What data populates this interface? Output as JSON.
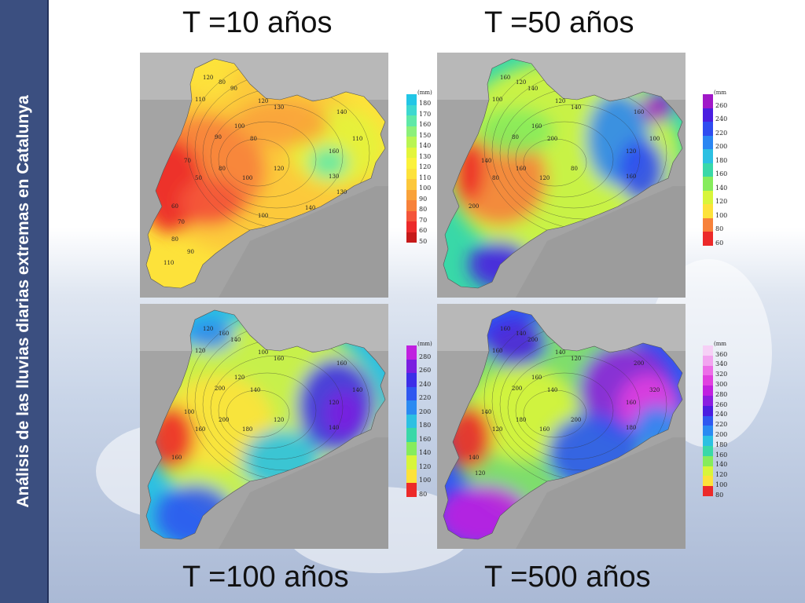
{
  "sidebar_title": "Análisis de las lluvias diarias extremas en Catalunya",
  "panels": [
    {
      "title": "T =10 años",
      "legend_unit": "(mm)",
      "legend_ticks": [
        "180",
        "170",
        "160",
        "150",
        "140",
        "130",
        "120",
        "110",
        "100",
        "90",
        "80",
        "70",
        "60",
        "50"
      ],
      "legend_colors": [
        "#22c6e6",
        "#3dd8d0",
        "#5fe8a8",
        "#8cf07a",
        "#b9f552",
        "#e3f53a",
        "#fbf23a",
        "#fde23a",
        "#fcc73a",
        "#f9a23a",
        "#f7813a",
        "#f4553a",
        "#ec2a2a",
        "#c61a1a"
      ],
      "contour_labels": [
        "120",
        "80",
        "90",
        "110",
        "120",
        "130",
        "100",
        "90",
        "80",
        "140",
        "110",
        "160",
        "70",
        "50",
        "80",
        "100",
        "120",
        "130",
        "60",
        "70",
        "80",
        "90",
        "100",
        "140",
        "130",
        "110"
      ]
    },
    {
      "title": "T =50 años",
      "legend_unit": "(mm",
      "legend_ticks": [
        "260",
        "240",
        "220",
        "200",
        "180",
        "160",
        "140",
        "120",
        "100",
        "80",
        "60"
      ],
      "legend_colors": [
        "#a018c8",
        "#4a1ee0",
        "#2f4cf0",
        "#2a86f2",
        "#2cc0e2",
        "#39d8a8",
        "#86ec5c",
        "#d8f53a",
        "#fde23a",
        "#f7813a",
        "#ec2a2a"
      ],
      "contour_labels": [
        "160",
        "120",
        "140",
        "100",
        "120",
        "140",
        "160",
        "80",
        "200",
        "160",
        "100",
        "120",
        "140",
        "80",
        "160",
        "120",
        "80",
        "160",
        "200"
      ]
    },
    {
      "title": "T =100 años",
      "legend_unit": "(mm)",
      "legend_ticks": [
        "280",
        "260",
        "240",
        "220",
        "200",
        "180",
        "160",
        "140",
        "120",
        "100",
        "80"
      ],
      "legend_colors": [
        "#c020e0",
        "#7a1ee0",
        "#3d2ee8",
        "#2f58f0",
        "#2a8af2",
        "#2cc0e2",
        "#39d8a8",
        "#86ec5c",
        "#d8f53a",
        "#fde23a",
        "#ec2a2a"
      ],
      "contour_labels": [
        "120",
        "160",
        "140",
        "120",
        "100",
        "160",
        "120",
        "200",
        "140",
        "160",
        "140",
        "120",
        "100",
        "160",
        "200",
        "180",
        "120",
        "140",
        "160"
      ]
    },
    {
      "title": "T =500 años",
      "legend_unit": "(mm",
      "legend_ticks": [
        "360",
        "340",
        "320",
        "300",
        "280",
        "260",
        "240",
        "220",
        "200",
        "180",
        "160",
        "140",
        "120",
        "100",
        "80"
      ],
      "legend_colors": [
        "#f6d0f6",
        "#f2a4f0",
        "#ec6ee8",
        "#e040e0",
        "#c020e0",
        "#8a1ee0",
        "#4a1ee0",
        "#2f58f0",
        "#2a8af2",
        "#2cc0e2",
        "#39d8a8",
        "#86ec5c",
        "#d8f53a",
        "#fde23a",
        "#ec2a2a"
      ],
      "contour_labels": [
        "160",
        "140",
        "200",
        "160",
        "140",
        "120",
        "160",
        "200",
        "140",
        "200",
        "320",
        "160",
        "140",
        "120",
        "180",
        "160",
        "200",
        "180",
        "140",
        "120"
      ]
    }
  ]
}
